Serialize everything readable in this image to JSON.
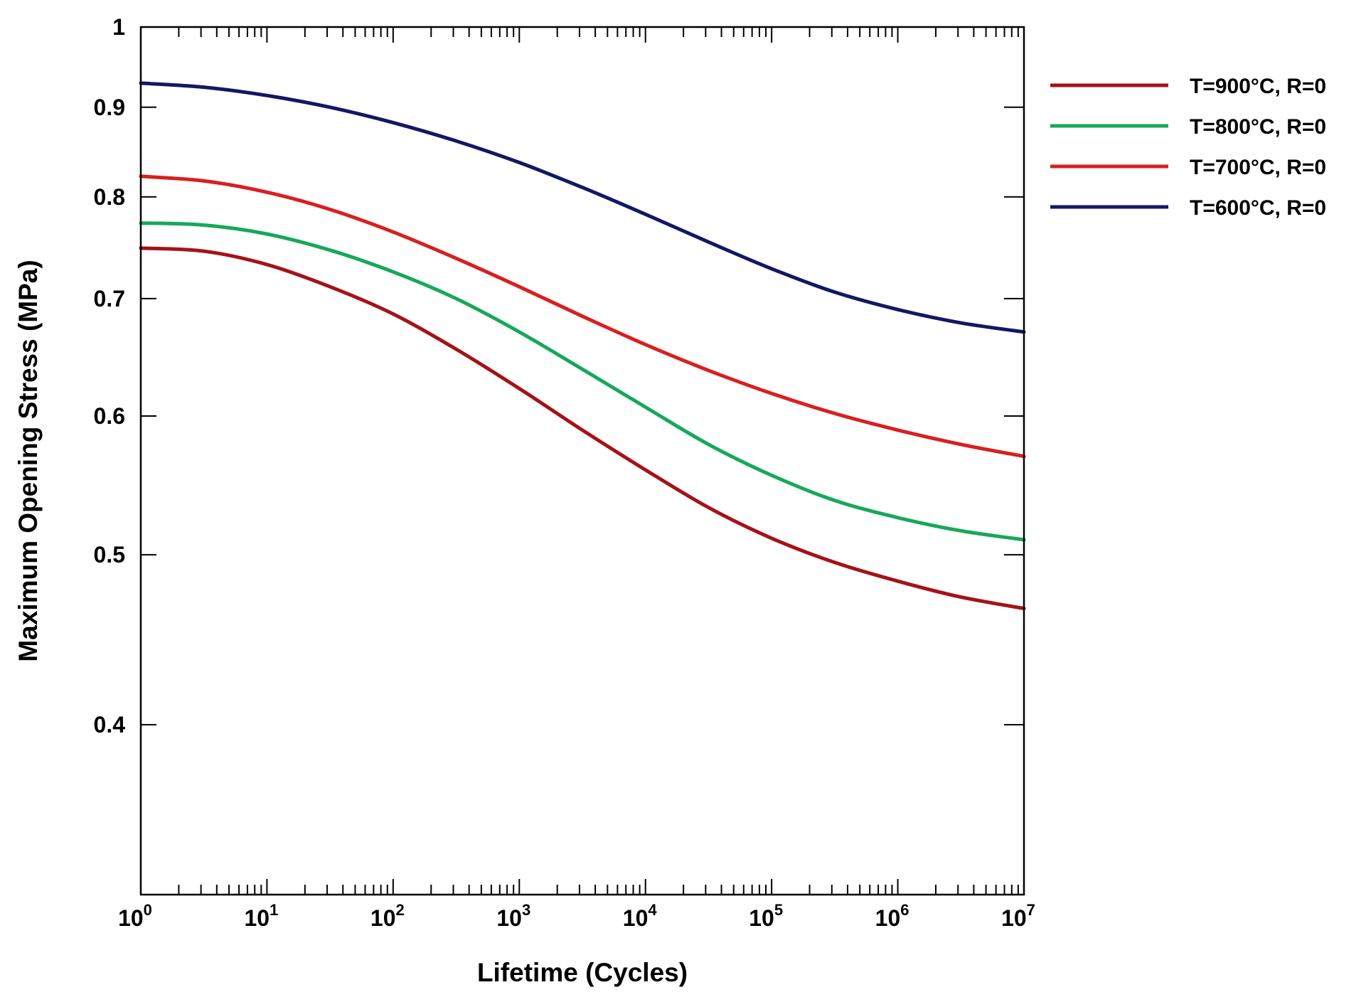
{
  "chart_data": {
    "type": "line",
    "xscale": "log",
    "yscale": "log",
    "xlabel": "Lifetime (Cycles)",
    "ylabel": "Maximum Opening Stress (MPa)",
    "xlim": [
      1,
      10000000
    ],
    "ylim": [
      0.32,
      1
    ],
    "xticks": [
      {
        "base": "10",
        "exp": "0"
      },
      {
        "base": "10",
        "exp": "1"
      },
      {
        "base": "10",
        "exp": "2"
      },
      {
        "base": "10",
        "exp": "3"
      },
      {
        "base": "10",
        "exp": "4"
      },
      {
        "base": "10",
        "exp": "5"
      },
      {
        "base": "10",
        "exp": "6"
      },
      {
        "base": "10",
        "exp": "7"
      }
    ],
    "yticks": [
      {
        "value": 0.4,
        "label": "0.4"
      },
      {
        "value": 0.5,
        "label": "0.5"
      },
      {
        "value": 0.6,
        "label": "0.6"
      },
      {
        "value": 0.7,
        "label": "0.7"
      },
      {
        "value": 0.8,
        "label": "0.8"
      },
      {
        "value": 0.9,
        "label": "0.9"
      },
      {
        "value": 1.0,
        "label": "1"
      }
    ],
    "legend_position": "outside-right-top",
    "series": [
      {
        "name": "T=900°C, R=0",
        "color": "#a51218",
        "x": [
          1,
          3.16,
          10,
          31.6,
          100,
          316,
          1000,
          3162,
          10000,
          31623,
          100000,
          316228,
          1000000,
          3162278,
          10000000
        ],
        "y": [
          0.748,
          0.745,
          0.732,
          0.711,
          0.686,
          0.655,
          0.622,
          0.589,
          0.559,
          0.532,
          0.511,
          0.495,
          0.483,
          0.473,
          0.466
        ]
      },
      {
        "name": "T=800°C, R=0",
        "color": "#17a85a",
        "x": [
          1,
          3.16,
          10,
          31.6,
          100,
          316,
          1000,
          3162,
          10000,
          31623,
          100000,
          316228,
          1000000,
          3162278,
          10000000
        ],
        "y": [
          0.773,
          0.771,
          0.762,
          0.746,
          0.725,
          0.7,
          0.67,
          0.638,
          0.607,
          0.578,
          0.555,
          0.537,
          0.525,
          0.516,
          0.51
        ]
      },
      {
        "name": "T=700°C, R=0",
        "color": "#d91f1f",
        "x": [
          1,
          3.16,
          10,
          31.6,
          100,
          316,
          1000,
          3162,
          10000,
          31623,
          100000,
          316228,
          1000000,
          3162278,
          10000000
        ],
        "y": [
          0.822,
          0.817,
          0.805,
          0.787,
          0.764,
          0.738,
          0.711,
          0.684,
          0.659,
          0.637,
          0.618,
          0.602,
          0.589,
          0.578,
          0.569
        ]
      },
      {
        "name": "T=600°C, R=0",
        "color": "#141763",
        "x": [
          1,
          3.16,
          10,
          31.6,
          100,
          316,
          1000,
          3162,
          10000,
          31623,
          100000,
          316228,
          1000000,
          3162278,
          10000000
        ],
        "y": [
          0.929,
          0.924,
          0.914,
          0.9,
          0.882,
          0.861,
          0.837,
          0.81,
          0.782,
          0.754,
          0.728,
          0.706,
          0.69,
          0.678,
          0.67
        ]
      }
    ]
  }
}
